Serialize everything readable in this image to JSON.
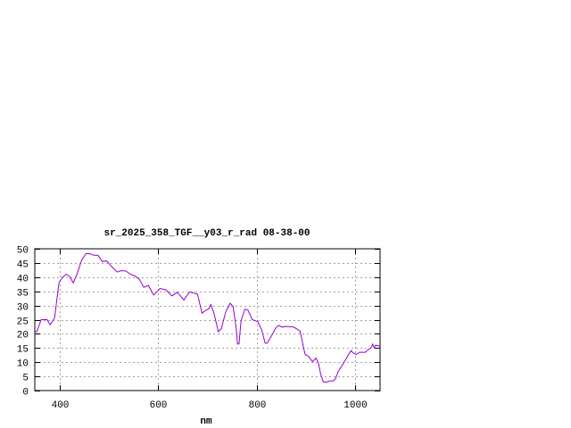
{
  "chart_data": {
    "type": "line",
    "title": "sr_2025_358_TGF__y03_r_rad 08-38-00",
    "xlabel": "nm",
    "ylabel": "",
    "xlim": [
      350,
      1050
    ],
    "ylim": [
      0,
      50
    ],
    "xticks": [
      400,
      600,
      800,
      1000
    ],
    "yticks": [
      0,
      5,
      10,
      15,
      20,
      25,
      30,
      35,
      40,
      45,
      50
    ],
    "grid": true,
    "line_color": "#9400d3",
    "series": [
      {
        "x": [
          350,
          354,
          363,
          375,
          381,
          390,
          399,
          405,
          414,
          420,
          428,
          436,
          445,
          454,
          463,
          469,
          478,
          487,
          496,
          505,
          517,
          526,
          535,
          544,
          553,
          562,
          571,
          580,
          591,
          604,
          616,
          628,
          639,
          652,
          664,
          680,
          689,
          694,
          703,
          707,
          713,
          722,
          728,
          737,
          746,
          752,
          758,
          761,
          764,
          768,
          776,
          782,
          791,
          802,
          810,
          817,
          821,
          830,
          839,
          845,
          851,
          860,
          875,
          884,
          888,
          893,
          898,
          904,
          913,
          920,
          925,
          929,
          935,
          942,
          947,
          955,
          960,
          965,
          971,
          977,
          983,
          991,
          996,
          1002,
          1008,
          1020,
          1027,
          1032,
          1035,
          1038,
          1041,
          1050
        ],
        "y": [
          20.8,
          20.8,
          25,
          25,
          23.2,
          25.5,
          38,
          39.7,
          41,
          40.4,
          38,
          41.2,
          46,
          48.3,
          48.2,
          47.7,
          47.7,
          45.5,
          45.7,
          43.9,
          41.8,
          42.3,
          42.1,
          41,
          40.4,
          39.2,
          36.4,
          37.1,
          33.7,
          36,
          35.5,
          33.4,
          34.7,
          31.9,
          34.8,
          34,
          27.3,
          28,
          28.9,
          30.3,
          27.4,
          20.8,
          21.8,
          27.7,
          30.8,
          29.7,
          22.4,
          16.4,
          16.4,
          24.5,
          28.7,
          28.4,
          25,
          24.3,
          21.4,
          16.7,
          16.7,
          19.3,
          22.2,
          23,
          22.4,
          22.6,
          22.4,
          21.4,
          20.9,
          16.7,
          12.7,
          12.2,
          10.2,
          11.4,
          9.8,
          6.2,
          3,
          3,
          3.4,
          3.4,
          4.3,
          6.7,
          8.3,
          9.9,
          11.8,
          14.1,
          13.2,
          12.7,
          13.5,
          13.5,
          14.6,
          15.1,
          16.4,
          15.1,
          16,
          15.7
        ]
      }
    ]
  }
}
